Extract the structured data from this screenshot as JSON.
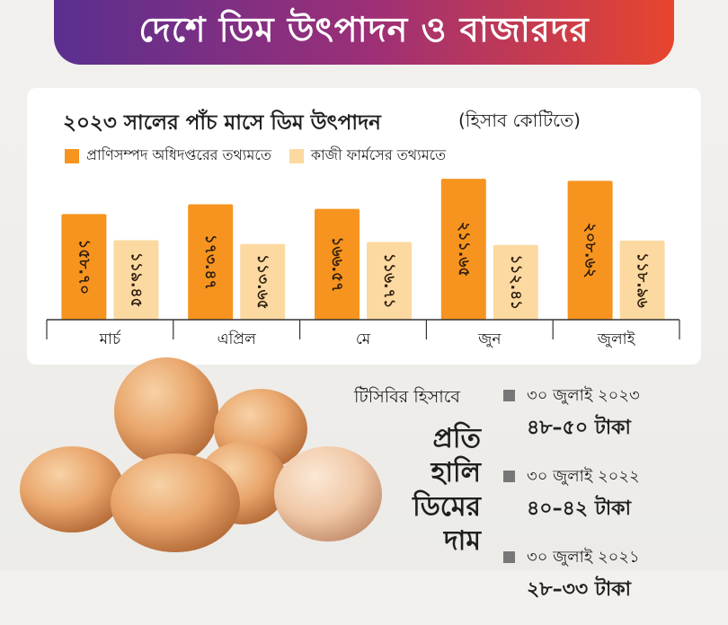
{
  "header": {
    "title": "দেশে ডিম উৎপাদন ও বাজারদর"
  },
  "chart_data": {
    "type": "bar",
    "title": "২০২৩ সালের পাঁচ মাসে ডিম উৎপাদন",
    "unit": "(হিসাব কোটিতে)",
    "categories": [
      "মার্চ",
      "এপ্রিল",
      "মে",
      "জুন",
      "জুলাই"
    ],
    "series": [
      {
        "name": "প্রাণিসম্পদ অধিদপ্তরের তথ্যমতে",
        "color": "#f6941f",
        "values": [
          158.7,
          173.47,
          166.57,
          211.65,
          208.62
        ],
        "labels": [
          "১৫৮.৭০",
          "১৭৩.৪৭",
          "১৬৬.৫৭",
          "২১১.৬৫",
          "২০৮.৬২"
        ]
      },
      {
        "name": "কাজী ফার্মসের তথ্যমতে",
        "color": "#fcd9a0",
        "values": [
          119.45,
          113.65,
          116.71,
          112.41,
          118.96
        ],
        "labels": [
          "১১৯.৪৫",
          "১১৩.৬৫",
          "১১৬.৭১",
          "১১২.৪১",
          "১১৮.৯৬"
        ]
      }
    ],
    "ylim": [
      0,
      220
    ],
    "legend": "top-left",
    "grid": false
  },
  "tcb": {
    "heading": "টিসিবির হিসাবে",
    "side_label": [
      "প্রতি",
      "হালি",
      "ডিমের",
      "দাম"
    ],
    "prices": [
      {
        "date": "৩০ জুলাই ২০২৩",
        "amount": "৪৮–৫০ টাকা"
      },
      {
        "date": "৩০ জুলাই ২০২২",
        "amount": "৪০–৪২ টাকা"
      },
      {
        "date": "৩০ জুলাই ২০২১",
        "amount": "২৮–৩৩ টাকা"
      }
    ]
  }
}
